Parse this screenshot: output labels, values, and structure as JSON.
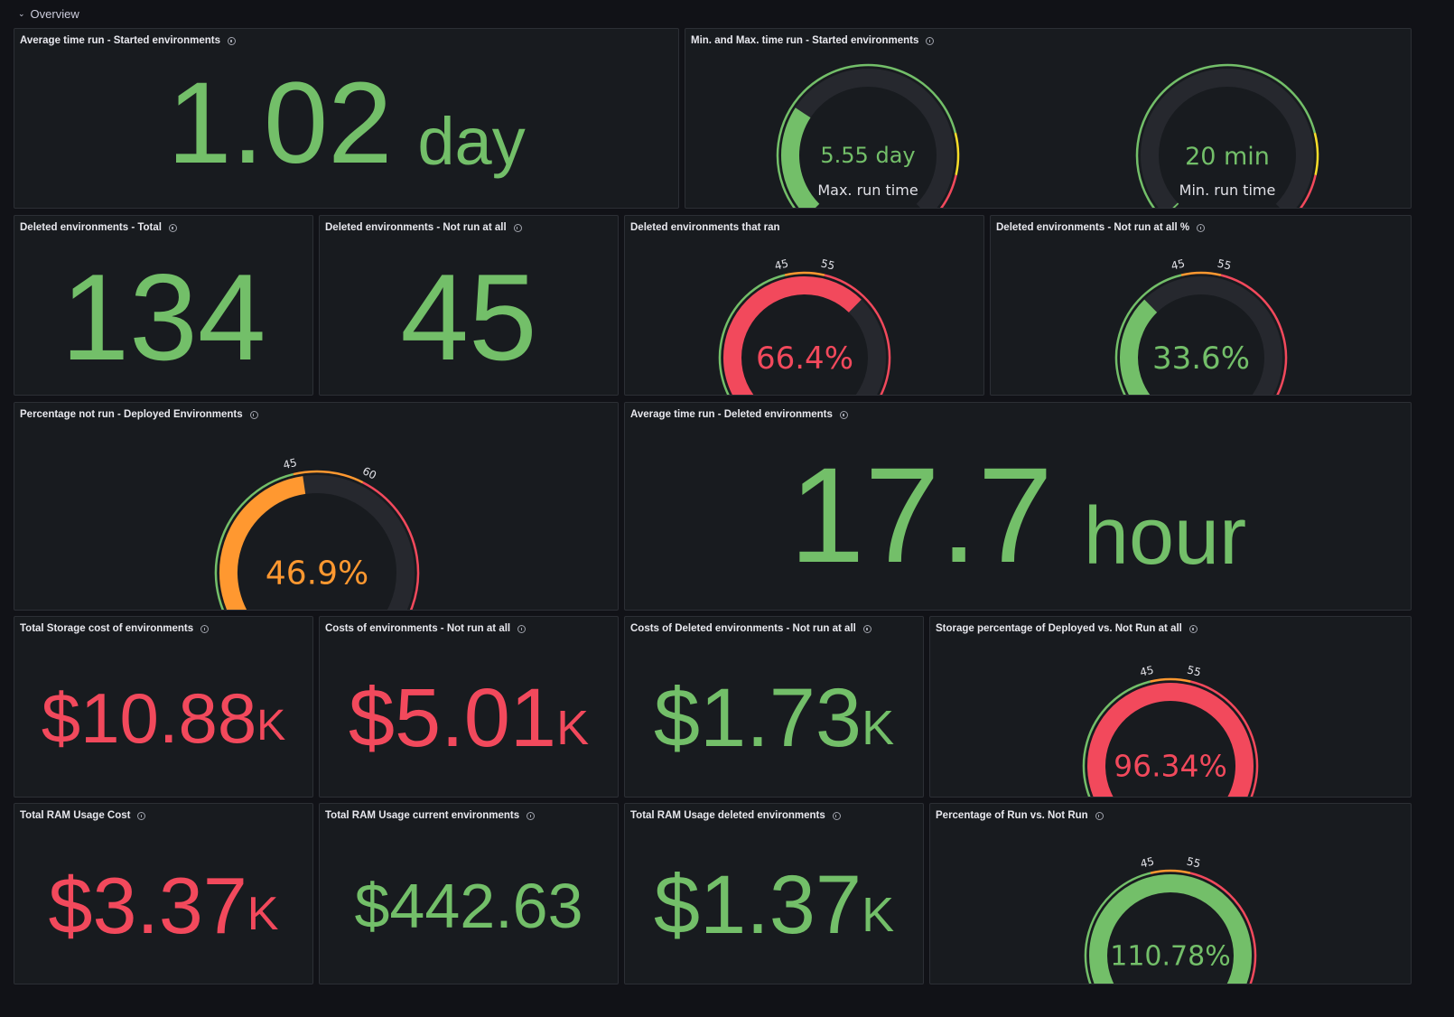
{
  "row": {
    "title": "Overview"
  },
  "colors": {
    "green": "#73bf69",
    "red": "#f2495c",
    "orange": "#ff9830",
    "yellow": "#fade2a",
    "track": "#26282e",
    "background": "#111217",
    "panel": "#181b1f"
  },
  "panels": {
    "avg_started": {
      "title": "Average time run - Started environments",
      "value": "1.02",
      "unit": "day"
    },
    "minmax": {
      "title": "Min. and Max. time run - Started environments",
      "max": {
        "value": "5.55 day",
        "label": "Max. run time",
        "fraction": 0.29
      },
      "min": {
        "value": "20 min",
        "label": "Min. run time",
        "fraction": 0.003
      }
    },
    "deleted_total": {
      "title": "Deleted environments - Total",
      "value": "134"
    },
    "deleted_notrun": {
      "title": "Deleted environments - Not run at all",
      "value": "45"
    },
    "deleted_ran": {
      "title": "Deleted environments that ran",
      "value": "66.4%",
      "percent": 66.4,
      "min": "0",
      "max": "100",
      "t1": "45",
      "t2": "55"
    },
    "deleted_notrun_pct": {
      "title": "Deleted environments - Not run at all %",
      "value": "33.6%",
      "percent": 33.6,
      "min": "0",
      "max": "100",
      "t1": "45",
      "t2": "55"
    },
    "pct_notrun_deployed": {
      "title": "Percentage not run - Deployed Environments",
      "value": "46.9%",
      "percent": 46.9,
      "min": "0",
      "max": "100",
      "t1": "45",
      "t2": "60"
    },
    "avg_deleted": {
      "title": "Average time run - Deleted environments",
      "value": "17.7",
      "unit": "hour"
    },
    "storage_cost": {
      "title": "Total Storage cost of environments",
      "value": "$10.88",
      "unit": "K"
    },
    "costs_notrun": {
      "title": "Costs of environments - Not run at all",
      "value": "$5.01",
      "unit": "K"
    },
    "costs_deleted_notrun": {
      "title": "Costs of Deleted environments - Not run at all",
      "value": "$1.73",
      "unit": "K"
    },
    "storage_pct": {
      "title": "Storage percentage of Deployed vs. Not Run at all",
      "value": "96.34%",
      "percent": 96.34,
      "min": "0",
      "max": "100",
      "t1": "45",
      "t2": "55"
    },
    "ram_total": {
      "title": "Total RAM Usage Cost",
      "value": "$3.37",
      "unit": "K"
    },
    "ram_current": {
      "title": "Total RAM Usage current environments",
      "value": "$442.63"
    },
    "ram_deleted": {
      "title": "Total RAM Usage deleted environments",
      "value": "$1.37",
      "unit": "K"
    },
    "pct_run_vs_notrun": {
      "title": "Percentage of Run vs. Not Run",
      "value": "110.78%",
      "percent": 110.78,
      "min": "0",
      "max": "100",
      "t1": "45",
      "t2": "55"
    }
  }
}
